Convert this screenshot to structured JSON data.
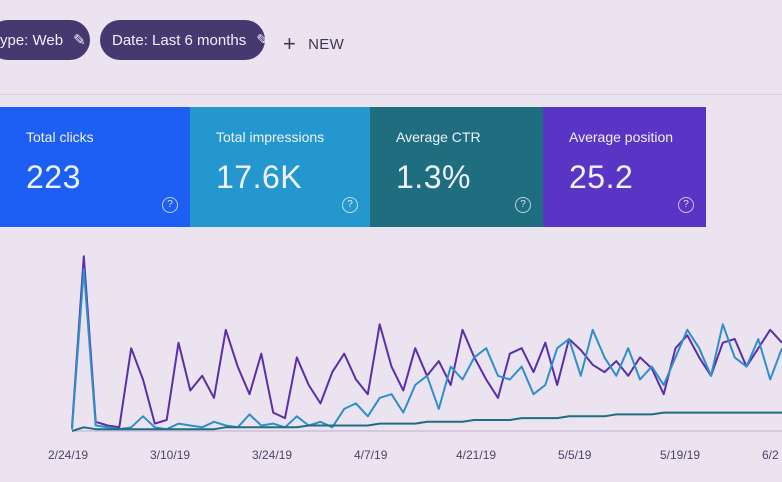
{
  "filters": {
    "type_chip": "ype: Web",
    "date_chip": "Date: Last 6 months",
    "new_label": "NEW"
  },
  "cards": [
    {
      "label": "Total clicks",
      "value": "223"
    },
    {
      "label": "Total impressions",
      "value": "17.6K"
    },
    {
      "label": "Average CTR",
      "value": "1.3%"
    },
    {
      "label": "Average position",
      "value": "25.2"
    }
  ],
  "colors": {
    "clicks": "#1d5ff2",
    "impressions": "#2597cf",
    "ctr": "#1f6e80",
    "position": "#5a35c5"
  },
  "icons": {
    "edit": "pencil-icon",
    "add": "plus-icon",
    "help": "help-circle-icon"
  },
  "chart_data": {
    "type": "line",
    "x_tick_labels": [
      "2/24/19",
      "3/10/19",
      "3/24/19",
      "4/7/19",
      "4/21/19",
      "5/5/19",
      "5/19/19",
      "6/2"
    ],
    "series": [
      {
        "values": [
          2,
          95,
          5,
          3,
          2,
          45,
          28,
          4,
          6,
          48,
          22,
          30,
          18,
          55,
          35,
          20,
          42,
          10,
          7,
          40,
          25,
          15,
          32,
          42,
          28,
          20,
          58,
          35,
          22,
          45,
          30,
          38,
          25,
          55,
          40,
          28,
          18,
          42,
          45,
          32,
          48,
          25,
          50,
          44,
          36,
          32,
          38,
          30,
          40,
          34,
          20,
          45,
          52,
          40,
          30,
          48,
          50,
          35,
          45,
          55,
          48
        ]
      },
      {
        "values": [
          1,
          88,
          3,
          2,
          1,
          2,
          8,
          2,
          1,
          4,
          3,
          2,
          5,
          3,
          2,
          9,
          3,
          4,
          2,
          8,
          3,
          5,
          2,
          12,
          15,
          8,
          18,
          20,
          10,
          25,
          30,
          12,
          35,
          28,
          40,
          45,
          30,
          28,
          35,
          20,
          25,
          45,
          50,
          30,
          55,
          40,
          30,
          45,
          28,
          35,
          25,
          40,
          55,
          45,
          30,
          58,
          40,
          35,
          50,
          28,
          45
        ]
      },
      {
        "values": [
          0,
          2,
          1,
          1,
          1,
          1,
          1,
          1,
          1,
          1,
          1,
          1,
          1,
          2,
          2,
          2,
          2,
          2,
          2,
          2,
          3,
          3,
          3,
          3,
          3,
          3,
          4,
          4,
          4,
          4,
          5,
          5,
          5,
          5,
          6,
          6,
          6,
          6,
          7,
          7,
          7,
          7,
          8,
          8,
          8,
          8,
          9,
          9,
          9,
          9,
          10,
          10,
          10,
          10,
          10,
          10,
          10,
          10,
          10,
          10,
          10
        ]
      }
    ]
  }
}
